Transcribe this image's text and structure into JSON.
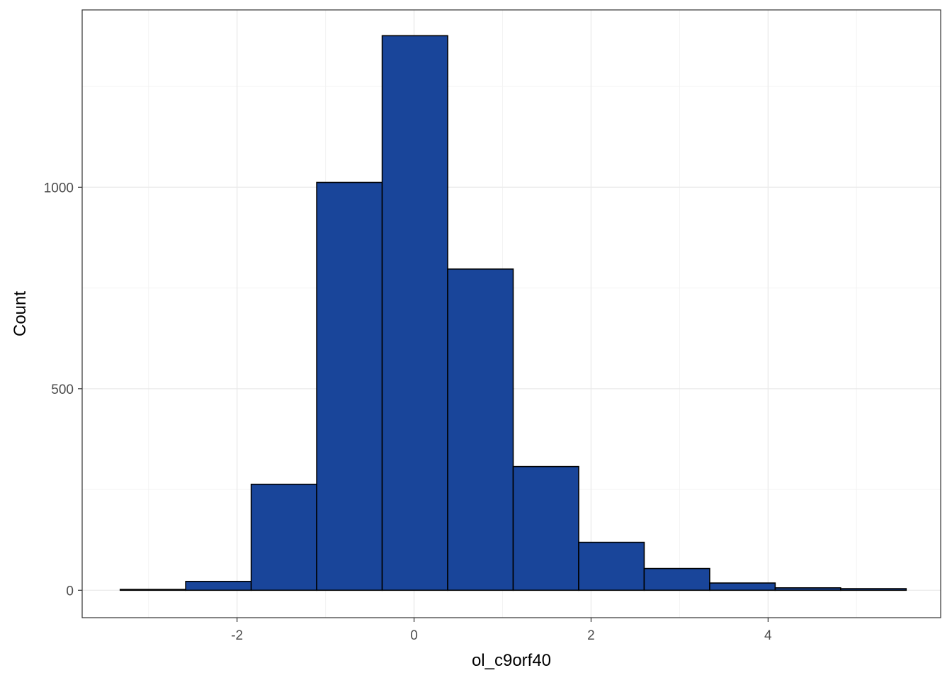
{
  "chart_data": {
    "type": "bar",
    "subtype": "histogram",
    "xlabel": "ol_c9orf40",
    "ylabel": "Count",
    "xlim": [
      -3.75,
      5.95
    ],
    "ylim": [
      -68,
      1440
    ],
    "x_ticks": [
      -2,
      0,
      2,
      4
    ],
    "x_tick_labels": [
      "-2",
      "0",
      "2",
      "4"
    ],
    "x_minor_ticks": [
      -3,
      -1,
      1,
      3,
      5
    ],
    "y_ticks": [
      0,
      500,
      1000
    ],
    "y_tick_labels": [
      "0",
      "500",
      "1000"
    ],
    "y_minor_ticks": [
      250,
      750,
      1250
    ],
    "bins": [
      {
        "x0": -3.32,
        "x1": -2.58,
        "count": 2
      },
      {
        "x0": -2.58,
        "x1": -1.84,
        "count": 22
      },
      {
        "x0": -1.84,
        "x1": -1.1,
        "count": 263
      },
      {
        "x0": -1.1,
        "x1": -0.36,
        "count": 1012
      },
      {
        "x0": -0.36,
        "x1": 0.38,
        "count": 1376
      },
      {
        "x0": 0.38,
        "x1": 1.12,
        "count": 797
      },
      {
        "x0": 1.12,
        "x1": 1.86,
        "count": 307
      },
      {
        "x0": 1.86,
        "x1": 2.6,
        "count": 119
      },
      {
        "x0": 2.6,
        "x1": 3.34,
        "count": 54
      },
      {
        "x0": 3.34,
        "x1": 4.08,
        "count": 18
      },
      {
        "x0": 4.08,
        "x1": 4.82,
        "count": 6
      },
      {
        "x0": 4.82,
        "x1": 5.56,
        "count": 4
      }
    ],
    "grid": true,
    "legend": "none",
    "colors": {
      "bar_fill": "#19459a",
      "bar_stroke": "#000000",
      "grid_major": "#ebebeb",
      "grid_minor": "#f3f3f3",
      "panel_border": "#333333"
    }
  }
}
